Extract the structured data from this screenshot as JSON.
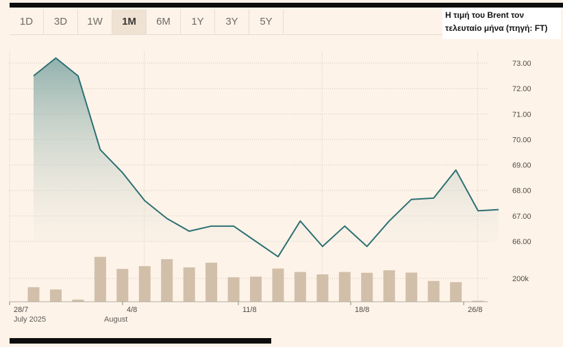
{
  "tabs": [
    {
      "label": "1D",
      "active": false
    },
    {
      "label": "3D",
      "active": false
    },
    {
      "label": "1W",
      "active": false
    },
    {
      "label": "1M",
      "active": true
    },
    {
      "label": "6M",
      "active": false
    },
    {
      "label": "1Y",
      "active": false
    },
    {
      "label": "3Y",
      "active": false
    },
    {
      "label": "5Y",
      "active": false
    }
  ],
  "title_lines": [
    "Η τιμή του Brent τον",
    "τελευταίο μήνα (πηγή: FT)"
  ],
  "month_labels": {
    "july": "July 2025",
    "august": "August"
  },
  "colors": {
    "line": "#2b6f73",
    "area_top": "#7fa6a3",
    "bar": "#d1bfaa",
    "grid": "#cfc6bc",
    "background": "#fdf3e8"
  },
  "chart_data": {
    "type": "line",
    "y_ticks": [
      "73.00",
      "72.00",
      "71.00",
      "70.00",
      "69.00",
      "68.00",
      "67.00",
      "66.00"
    ],
    "ylim": [
      65.6,
      73.3
    ],
    "x_ticks": [
      "28/7",
      "4/8",
      "11/8",
      "18/8",
      "26/8"
    ],
    "x_tick_days": [
      0,
      6,
      14,
      21,
      29
    ],
    "xlim": [
      -1,
      30
    ],
    "grid": true,
    "series": [
      {
        "x": [
          0,
          1,
          2,
          3,
          4,
          5,
          6,
          7,
          8,
          9,
          10,
          11,
          12,
          13,
          14,
          15,
          16,
          17,
          18,
          19,
          20,
          20
        ],
        "values": [
          72.5,
          73.2,
          72.5,
          69.6,
          68.7,
          67.6,
          66.9,
          66.4,
          66.6,
          66.6,
          66.0,
          65.4,
          66.8,
          65.8,
          66.6,
          65.8,
          66.8,
          67.65,
          67.7,
          68.8,
          67.2,
          67.25
        ]
      }
    ],
    "volume": {
      "tick_label": "200k",
      "tick_value": 200000,
      "values": [
        125000,
        105000,
        18000,
        385000,
        282000,
        305000,
        365000,
        295000,
        335000,
        210000,
        215000,
        285000,
        255000,
        235000,
        255000,
        248000,
        270000,
        250000,
        178000,
        168000,
        9000
      ]
    }
  }
}
